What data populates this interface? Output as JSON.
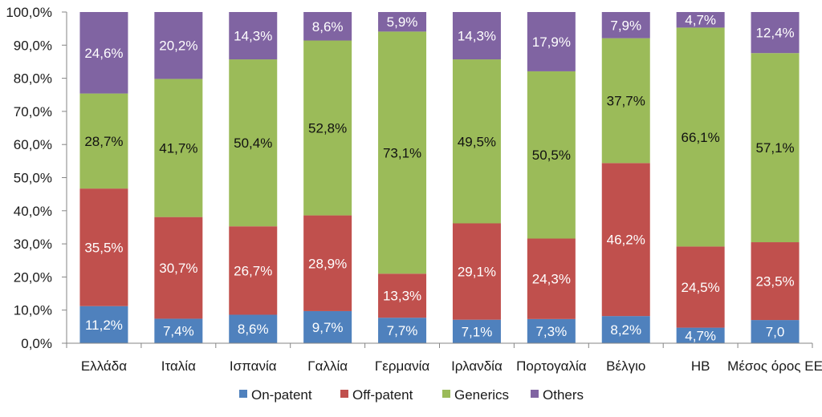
{
  "chart_data": {
    "type": "bar",
    "stacked": true,
    "categories": [
      "Ελλάδα",
      "Ιταλία",
      "Ισπανία",
      "Γαλλία",
      "Γερμανία",
      "Ιρλανδία",
      "Πορτογαλία",
      "Βέλγιο",
      "ΗΒ",
      "Μέσος όρος ΕΕ"
    ],
    "series": [
      {
        "name": "On-patent",
        "color": "#4f81bd",
        "label_color": "#ffffff",
        "values": [
          11.2,
          7.4,
          8.6,
          9.7,
          7.7,
          7.1,
          7.3,
          8.2,
          4.7,
          7.0
        ],
        "labels": [
          "11,2%",
          "7,4%",
          "8,6%",
          "9,7%",
          "7,7%",
          "7,1%",
          "7,3%",
          "8,2%",
          "4,7%",
          "7,0"
        ]
      },
      {
        "name": "Off-patent",
        "color": "#c0504d",
        "label_color": "#ffffff",
        "values": [
          35.5,
          30.7,
          26.7,
          28.9,
          13.3,
          29.1,
          24.3,
          46.2,
          24.5,
          23.5
        ],
        "labels": [
          "35,5%",
          "30,7%",
          "26,7%",
          "28,9%",
          "13,3%",
          "29,1%",
          "24,3%",
          "46,2%",
          "24,5%",
          "23,5%"
        ]
      },
      {
        "name": "Generics",
        "color": "#9bbb59",
        "label_color": "#111111",
        "values": [
          28.7,
          41.7,
          50.4,
          52.8,
          73.1,
          49.5,
          50.5,
          37.7,
          66.1,
          57.1
        ],
        "labels": [
          "28,7%",
          "41,7%",
          "50,4%",
          "52,8%",
          "73,1%",
          "49,5%",
          "50,5%",
          "37,7%",
          "66,1%",
          "57,1%"
        ]
      },
      {
        "name": "Others",
        "color": "#8064a2",
        "label_color": "#ffffff",
        "values": [
          24.6,
          20.2,
          14.3,
          8.6,
          5.9,
          14.3,
          17.9,
          7.9,
          4.7,
          12.4
        ],
        "labels": [
          "24,6%",
          "20,2%",
          "14,3%",
          "8,6%",
          "5,9%",
          "14,3%",
          "17,9%",
          "7,9%",
          "4,7%",
          "12,4%"
        ]
      }
    ],
    "ylim": [
      0,
      100
    ],
    "yticks": [
      0,
      10,
      20,
      30,
      40,
      50,
      60,
      70,
      80,
      90,
      100
    ],
    "ytick_labels": [
      "0,0%",
      "10,0%",
      "20,0%",
      "30,0%",
      "40,0%",
      "50,0%",
      "60,0%",
      "70,0%",
      "80,0%",
      "90,0%",
      "100,0%"
    ],
    "grid": false,
    "legend_position": "bottom",
    "title": "",
    "xlabel": "",
    "ylabel": ""
  }
}
